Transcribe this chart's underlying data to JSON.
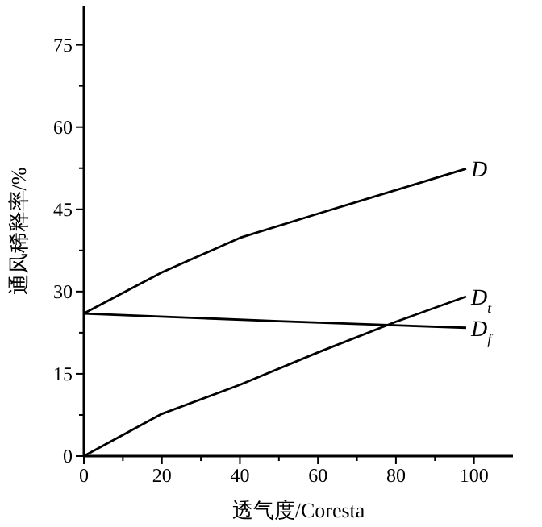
{
  "chart_data": {
    "type": "line",
    "xlabel": "透气度/Coresta",
    "ylabel": "通风稀释率/%",
    "xlim": [
      0,
      110
    ],
    "ylim": [
      0,
      82
    ],
    "xticks": [
      0,
      {
        "value": 10,
        "label": null
      },
      20,
      {
        "value": 30,
        "label": null
      },
      40,
      {
        "value": 50,
        "label": null
      },
      60,
      {
        "value": 70,
        "label": null
      },
      80,
      {
        "value": 90,
        "label": null
      },
      100
    ],
    "yticks": [
      0,
      {
        "value": 7.5,
        "label": null
      },
      15,
      {
        "value": 22.5,
        "label": null
      },
      30,
      {
        "value": 37.5,
        "label": null
      },
      45,
      {
        "value": 52.5,
        "label": null
      },
      60,
      {
        "value": 67.5,
        "label": null
      },
      75
    ],
    "grid": false,
    "marker": "none",
    "line_style": "solid",
    "series": [
      {
        "name": "D",
        "color": "#000000",
        "x": [
          0,
          20,
          40,
          60,
          80,
          98
        ],
        "values": [
          26,
          33.5,
          39.8,
          44.2,
          48.5,
          52.4
        ]
      },
      {
        "name": "D$_{t}$",
        "color": "#000000",
        "x": [
          0,
          20,
          40,
          60,
          80,
          98
        ],
        "values": [
          0,
          7.7,
          13,
          18.9,
          24.5,
          29.1
        ]
      },
      {
        "name": "D$_{f}$",
        "color": "#000000",
        "x": [
          0,
          50,
          98
        ],
        "values": [
          26,
          24.6,
          23.4
        ]
      }
    ]
  }
}
